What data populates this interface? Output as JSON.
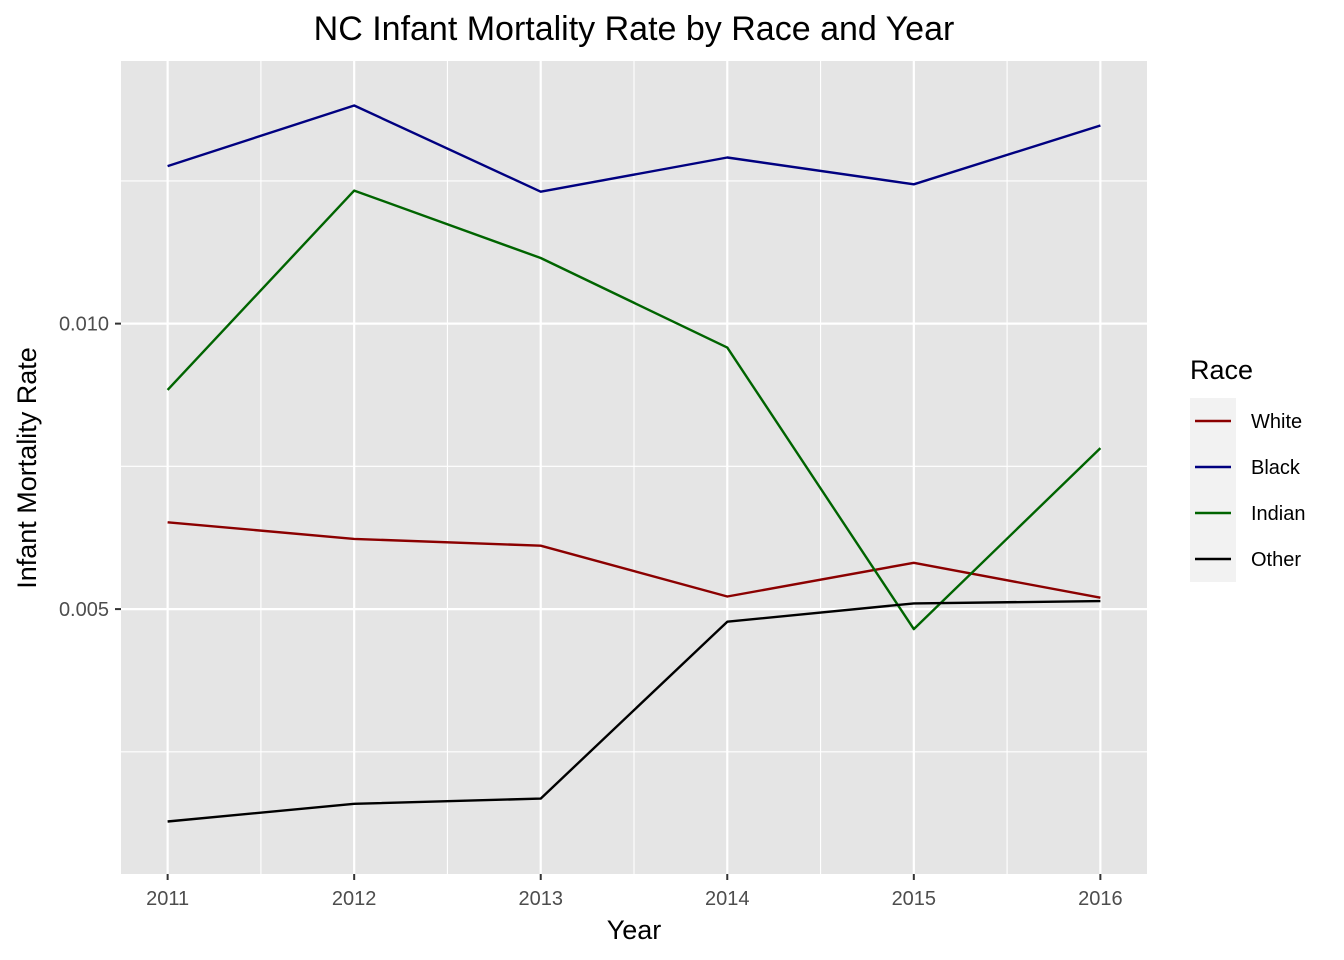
{
  "chart_data": {
    "type": "line",
    "title": "NC Infant Mortality Rate by Race and Year",
    "xlabel": "Year",
    "ylabel": "Infant Mortality Rate",
    "x": [
      2011,
      2012,
      2013,
      2014,
      2015,
      2016
    ],
    "x_tick_labels": [
      "2011",
      "2012",
      "2013",
      "2014",
      "2015",
      "2016"
    ],
    "y_ticks": [
      0.005,
      0.01
    ],
    "y_tick_labels": [
      "0.005",
      "0.010"
    ],
    "xlim": [
      2010.75,
      2016.25
    ],
    "ylim": [
      0.00036,
      0.0146
    ],
    "grid": true,
    "legend_title": "Race",
    "legend_position": "right",
    "series": [
      {
        "name": "White",
        "color": "#8B0000",
        "values": [
          0.00652,
          0.00623,
          0.00611,
          0.00522,
          0.00581,
          0.0052
        ]
      },
      {
        "name": "Black",
        "color": "#000080",
        "values": [
          0.01276,
          0.01382,
          0.01231,
          0.01291,
          0.01244,
          0.01347
        ]
      },
      {
        "name": "Indian",
        "color": "#006400",
        "values": [
          0.00884,
          0.01233,
          0.01115,
          0.00958,
          0.00465,
          0.00782
        ]
      },
      {
        "name": "Other",
        "color": "#000000",
        "values": [
          0.00128,
          0.00159,
          0.00168,
          0.00478,
          0.0051,
          0.00514
        ]
      }
    ]
  }
}
